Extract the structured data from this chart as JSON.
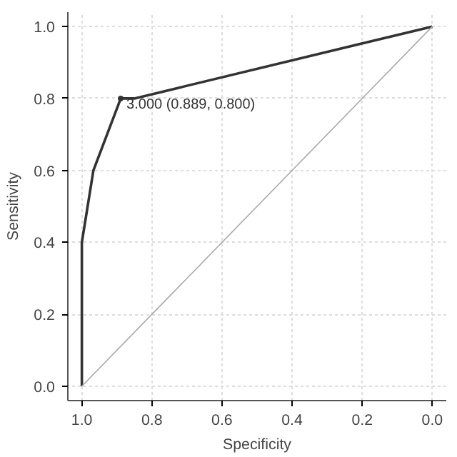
{
  "chart_data": {
    "type": "line",
    "xlabel": "Specificity",
    "ylabel": "Sensitivity",
    "xlim": [
      1.04,
      -0.04
    ],
    "ylim": [
      -0.04,
      1.04
    ],
    "xticks": [
      {
        "value": 1,
        "label": "1.0"
      },
      0.8,
      0.6,
      0.4,
      0.2,
      {
        "value": 0,
        "label": "0.0"
      }
    ],
    "yticks": [
      {
        "value": 0,
        "label": "0.0"
      },
      0.2,
      0.4,
      0.6,
      0.8,
      {
        "value": 1,
        "label": "1.0"
      }
    ],
    "grid": true,
    "line_style": "solid",
    "series": [
      {
        "color": "#333333",
        "x": [
          1.0,
          1.0,
          0.967,
          0.889,
          0.85,
          0.0
        ],
        "values": [
          0.0,
          0.4,
          0.6,
          0.8,
          0.8,
          1.0
        ]
      },
      {
        "color": "#aaaaaa",
        "x": [
          1.0,
          0.0
        ],
        "values": [
          0.0,
          1.0
        ]
      }
    ],
    "annotations": [
      {
        "text": "3.000 (0.889, 0.800)",
        "x": 0.889,
        "y": 0.8
      }
    ]
  }
}
